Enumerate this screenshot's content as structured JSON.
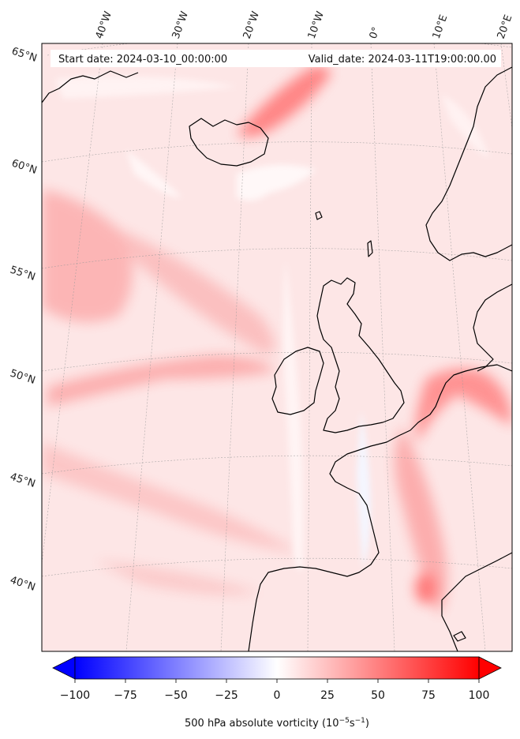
{
  "header": {
    "start_date": "Start date: 2024-03-10_00:00:00",
    "valid_date": "Valid_date: 2024-03-11T19:00:00.00"
  },
  "longitude_labels": [
    "40°W",
    "30°W",
    "20°W",
    "10°W",
    "0°",
    "10°E",
    "20°E"
  ],
  "latitude_labels": [
    "65°N",
    "60°N",
    "55°N",
    "50°N",
    "45°N",
    "40°N"
  ],
  "colorbar": {
    "ticks": [
      "−100",
      "−75",
      "−50",
      "−25",
      "0",
      "25",
      "50",
      "75",
      "100"
    ],
    "tick_values": [
      -100,
      -75,
      -50,
      -25,
      0,
      25,
      50,
      75,
      100
    ],
    "range": [
      -100,
      100
    ],
    "colormap": "bwr",
    "extend": "both",
    "title_main": "500 hPa absolute vorticity (10",
    "title_exp1": "−5",
    "title_mid": "s",
    "title_exp2": "−1",
    "title_end": ")"
  },
  "colors": {
    "negative": "#0000ff",
    "zero": "#ffffff",
    "positive": "#ff0000",
    "coastline": "#000000",
    "gridline": "#999999"
  }
}
